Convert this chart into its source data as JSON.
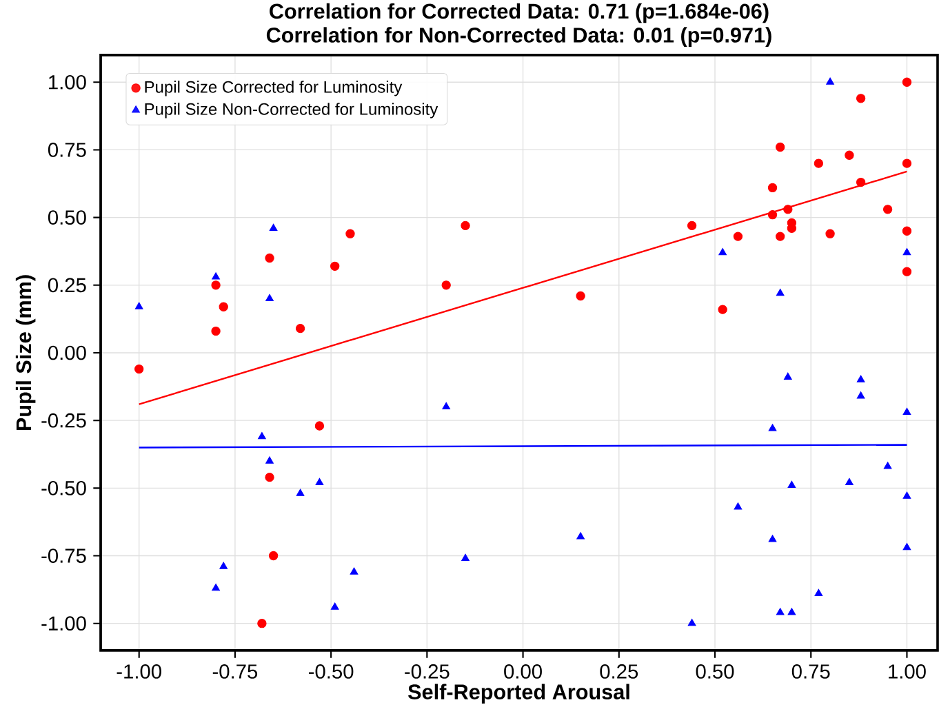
{
  "chart_data": {
    "type": "scatter",
    "title": "Correlation for Corrected Data: 0.71 (p=1.684e-06)",
    "subtitle": "Correlation for Non-Corrected Data: 0.01 (p=0.971)",
    "xlabel": "Self-Reported Arousal",
    "ylabel": "Pupil Size (mm)",
    "xlim": [
      -1.1,
      1.08
    ],
    "ylim": [
      -1.1,
      1.1
    ],
    "xticks": [
      {
        "value": -1,
        "label": "-1.00"
      },
      {
        "value": -0.75,
        "label": "-0.75"
      },
      {
        "value": -0.5,
        "label": "-0.50"
      },
      {
        "value": -0.25,
        "label": "-0.25"
      },
      {
        "value": 0,
        "label": "0.00"
      },
      {
        "value": 0.25,
        "label": "0.25"
      },
      {
        "value": 0.5,
        "label": "0.50"
      },
      {
        "value": 0.75,
        "label": "0.75"
      },
      {
        "value": 1,
        "label": "1.00"
      }
    ],
    "yticks": [
      {
        "value": -1,
        "label": "-1.00"
      },
      {
        "value": -0.75,
        "label": "-0.75"
      },
      {
        "value": -0.5,
        "label": "-0.50"
      },
      {
        "value": -0.25,
        "label": "-0.25"
      },
      {
        "value": 0,
        "label": "0.00"
      },
      {
        "value": 0.25,
        "label": "0.25"
      },
      {
        "value": 0.5,
        "label": "0.50"
      },
      {
        "value": 0.75,
        "label": "0.75"
      },
      {
        "value": 1,
        "label": "1.00"
      }
    ],
    "grid": true,
    "legend": "top left",
    "series": [
      {
        "name": "Pupil Size Corrected for Luminosity",
        "marker": "circle",
        "color": "#ff0000",
        "x": [
          -1.0,
          -0.8,
          -0.8,
          -0.78,
          -0.66,
          -0.58,
          -0.49,
          -0.45,
          -0.2,
          -0.15,
          0.15,
          0.44,
          0.52,
          0.56,
          0.65,
          0.65,
          0.67,
          0.67,
          0.69,
          0.7,
          0.7,
          0.77,
          0.8,
          0.85,
          0.88,
          0.88,
          0.95,
          1.0,
          1.0,
          1.0,
          1.0,
          -0.53,
          -0.66,
          -0.65,
          -0.68
        ],
        "values": [
          -0.06,
          0.25,
          0.08,
          0.17,
          0.35,
          0.09,
          0.32,
          0.44,
          0.25,
          0.47,
          0.21,
          0.47,
          0.16,
          0.43,
          0.61,
          0.51,
          0.76,
          0.43,
          0.53,
          0.46,
          0.48,
          0.7,
          0.44,
          0.73,
          0.94,
          0.63,
          0.53,
          1.0,
          0.7,
          0.45,
          0.3,
          -0.27,
          -0.46,
          -0.75,
          -1.0
        ]
      },
      {
        "name": "Pupil Size Non-Corrected for Luminosity",
        "marker": "triangle",
        "color": "#0000ff",
        "x": [
          -1.0,
          -0.8,
          -0.66,
          -0.65,
          0.52,
          0.67,
          0.8,
          1.0,
          -0.2,
          -0.68,
          -0.66,
          -0.58,
          -0.53,
          -0.8,
          -0.78,
          -0.49,
          -0.44,
          -0.15,
          0.15,
          0.44,
          0.56,
          0.65,
          0.65,
          0.67,
          0.7,
          0.69,
          0.7,
          0.77,
          0.85,
          0.88,
          0.88,
          0.95,
          1.0,
          1.0,
          1.0
        ],
        "values": [
          0.17,
          0.28,
          0.2,
          0.46,
          0.37,
          0.22,
          1.0,
          0.37,
          -0.2,
          -0.31,
          -0.4,
          -0.52,
          -0.48,
          -0.87,
          -0.79,
          -0.94,
          -0.81,
          -0.76,
          -0.68,
          -1.0,
          -0.57,
          -0.28,
          -0.69,
          -0.96,
          -0.96,
          -0.09,
          -0.49,
          -0.89,
          -0.48,
          -0.1,
          -0.16,
          -0.42,
          -0.22,
          -0.53,
          -0.72
        ]
      },
      {
        "type": "line",
        "color": "#ff0000",
        "x": [
          -1.0,
          1.0
        ],
        "values": [
          -0.19,
          0.67
        ]
      },
      {
        "type": "line",
        "color": "#0000ff",
        "x": [
          -1.0,
          1.0
        ],
        "values": [
          -0.35,
          -0.34
        ]
      }
    ]
  }
}
